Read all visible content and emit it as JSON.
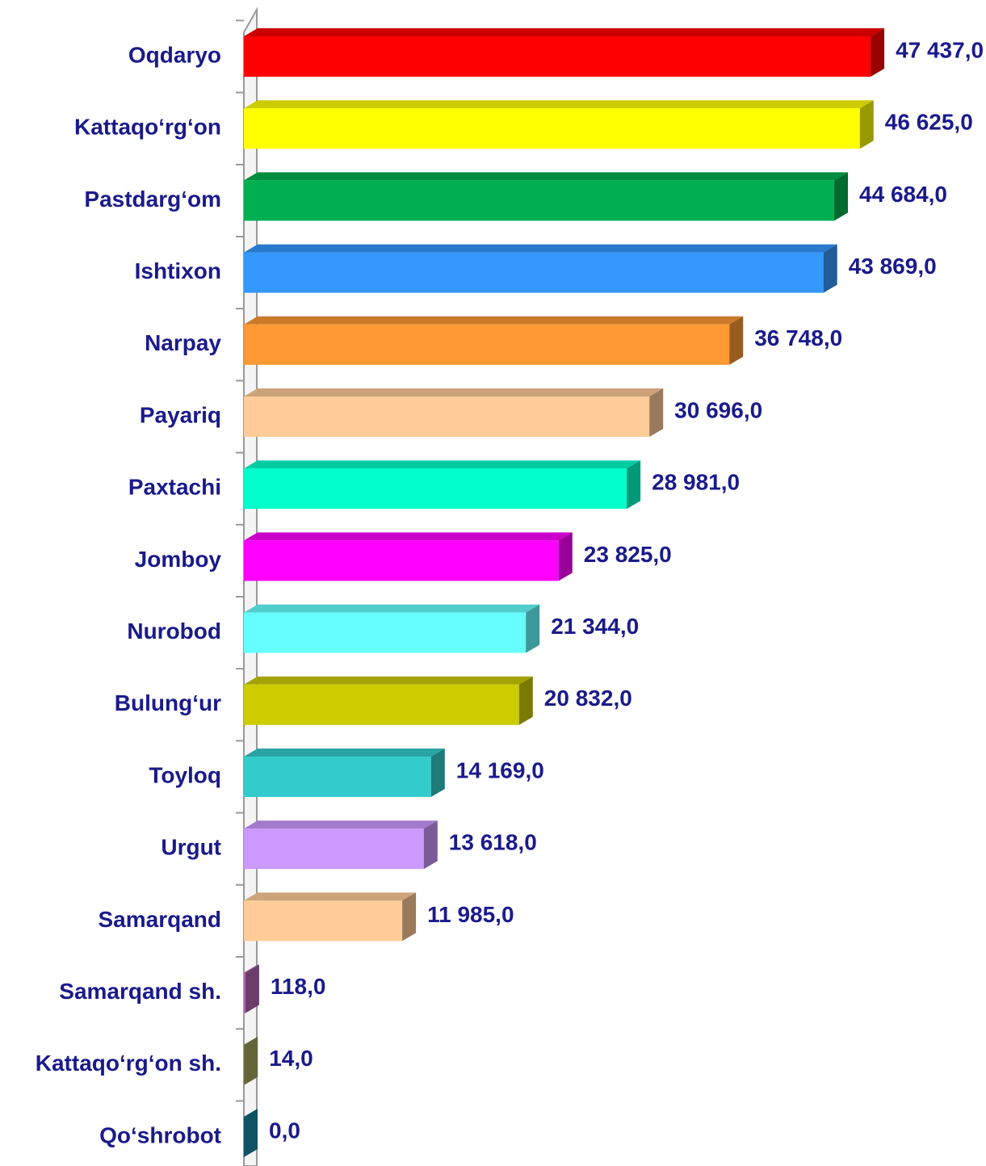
{
  "chart_data": {
    "type": "bar",
    "orientation": "horizontal",
    "categories": [
      "Oqdaryo",
      "Kattaqo‘rg‘on",
      "Pastdarg‘om",
      "Ishtixon",
      "Narpay",
      "Payariq",
      "Paxtachi",
      "Jomboy",
      "Nurobod",
      "Bulung‘ur",
      "Toyloq",
      "Urgut",
      "Samarqand",
      "Samarqand sh.",
      "Kattaqo‘rg‘on sh.",
      "Qo‘shrobot"
    ],
    "values": [
      47437,
      46625,
      44684,
      43869,
      36748,
      30696,
      28981,
      23825,
      21344,
      20832,
      14169,
      13618,
      11985,
      118,
      14,
      0
    ],
    "value_labels": [
      "47 437,0",
      "46 625,0",
      "44 684,0",
      "43 869,0",
      "36 748,0",
      "30 696,0",
      "28 981,0",
      "23 825,0",
      "21 344,0",
      "20 832,0",
      "14 169,0",
      "13 618,0",
      "11 985,0",
      "118,0",
      "14,0",
      "0,0"
    ],
    "colors": [
      "#ff0000",
      "#ffff00",
      "#00b050",
      "#3399ff",
      "#ff9933",
      "#ffcc99",
      "#00ffcc",
      "#ff00ff",
      "#66ffff",
      "#cccc00",
      "#33cccc",
      "#cc99ff",
      "#ffcc99",
      "#b366b3",
      "#a8a860",
      "#1a8aa8"
    ],
    "xlim": [
      0,
      50000
    ]
  }
}
